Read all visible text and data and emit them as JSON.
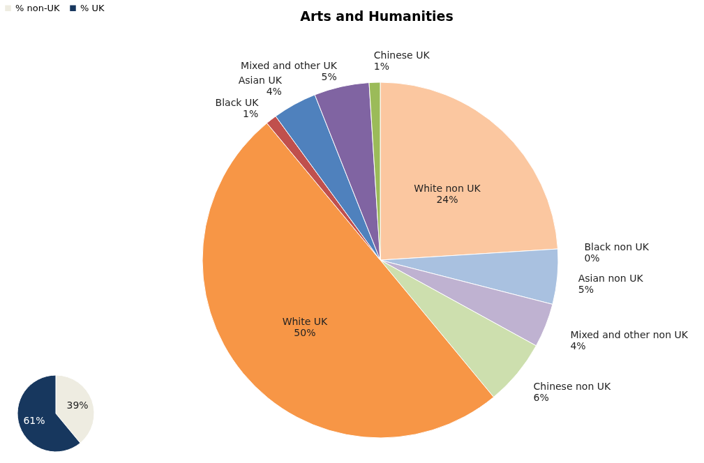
{
  "chart_data": [
    {
      "type": "pie",
      "title": "Arts and Humanities",
      "categories": [
        "White non UK",
        "Black non UK",
        "Asian non UK",
        "Mixed and other non UK",
        "Chinese non UK",
        "White UK",
        "Black UK",
        "Asian UK",
        "Mixed and other UK",
        "Chinese UK"
      ],
      "values": [
        24,
        0,
        5,
        4,
        6,
        50,
        1,
        4,
        5,
        1
      ],
      "value_labels": [
        "24%",
        "0%",
        "5%",
        "4%",
        "6%",
        "50%",
        "1%",
        "4%",
        "5%",
        "1%"
      ],
      "colors": [
        "#fbc7a0",
        "#e3a9a7",
        "#a9c1e0",
        "#bfb2d1",
        "#cddfae",
        "#f79646",
        "#c0504d",
        "#4f81bd",
        "#8064a2",
        "#9bbb59"
      ],
      "legend": false
    },
    {
      "type": "pie",
      "categories": [
        "% non-UK",
        "% UK"
      ],
      "values": [
        39,
        61
      ],
      "value_labels": [
        "39%",
        "61%"
      ],
      "colors": [
        "#eeece1",
        "#17375e"
      ],
      "legend": "top"
    }
  ]
}
